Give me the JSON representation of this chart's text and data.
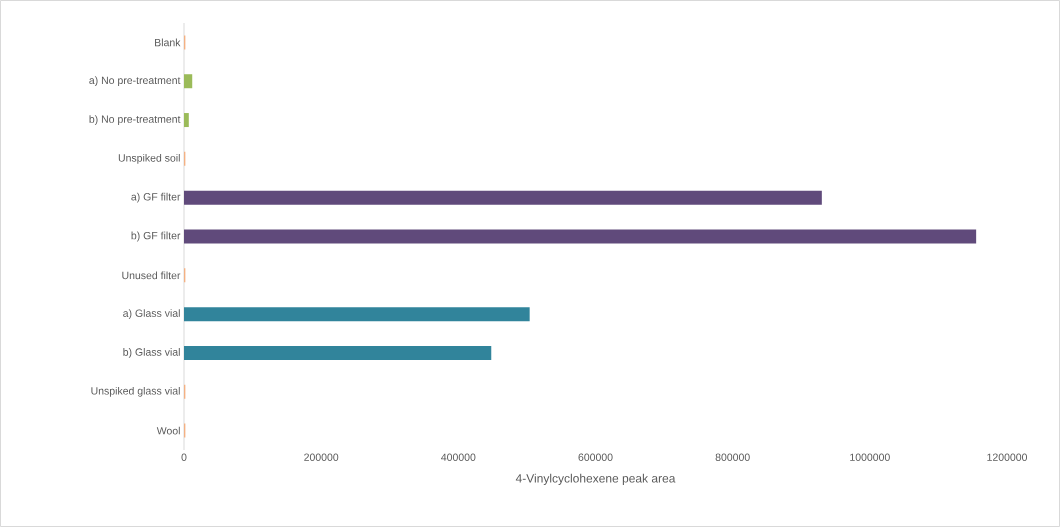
{
  "chart_data": {
    "type": "bar",
    "orientation": "horizontal",
    "categories": [
      "Blank",
      "a) No pre-treatment",
      "b) No pre-treatment",
      "Unspiked soil",
      "a) GF filter",
      "b) GF filter",
      "Unused filter",
      "a) Glass vial",
      "b) Glass vial",
      "Unspiked glass vial",
      "Wool"
    ],
    "values": [
      2000,
      12000,
      7000,
      2000,
      930000,
      1155000,
      2000,
      504000,
      448000,
      2000,
      2000
    ],
    "colors": [
      "#f4b183",
      "#9bbb59",
      "#9bbb59",
      "#f4b183",
      "#604a7b",
      "#604a7b",
      "#f4b183",
      "#31849b",
      "#31849b",
      "#f4b183",
      "#f4b183"
    ],
    "xlabel": "4-Vinylcyclohexene peak area",
    "xlim": [
      0,
      1200000
    ],
    "xticks": [
      0,
      200000,
      400000,
      600000,
      800000,
      1000000,
      1200000
    ],
    "grid": false
  }
}
